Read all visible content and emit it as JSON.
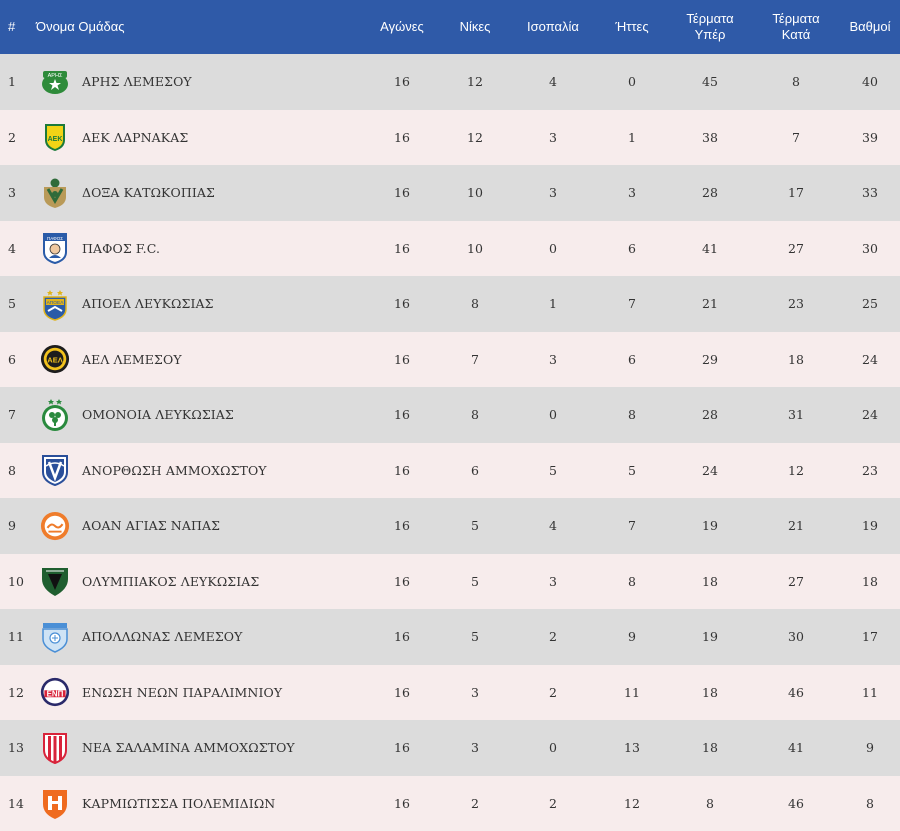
{
  "header": {
    "rank": "#",
    "team": "Όνομα Ομάδας",
    "played": "Αγώνες",
    "wins": "Νίκες",
    "draws": "Ισοπαλία",
    "losses": "Ήττες",
    "goals_for_1": "Τέρματα",
    "goals_for_2": "Υπέρ",
    "goals_against_1": "Τέρματα",
    "goals_against_2": "Κατά",
    "points": "Βαθμοί"
  },
  "rows": [
    {
      "rank": "1",
      "team": "ΑΡΗΣ ΛΕΜΕΣΟΥ",
      "played": "16",
      "wins": "12",
      "draws": "4",
      "losses": "0",
      "gf": "45",
      "ga": "8",
      "pts": "40",
      "logo": "aris-limassol-logo",
      "logo_text": "ΑΡΗΣ"
    },
    {
      "rank": "2",
      "team": "ΑΕΚ ΛΑΡΝΑΚΑΣ",
      "played": "16",
      "wins": "12",
      "draws": "3",
      "losses": "1",
      "gf": "38",
      "ga": "7",
      "pts": "39",
      "logo": "aek-larnaca-logo",
      "logo_text": "ΑΕΚ"
    },
    {
      "rank": "3",
      "team": "ΔΟΞΑ ΚΑΤΩΚΟΠΙΑΣ",
      "played": "16",
      "wins": "10",
      "draws": "3",
      "losses": "3",
      "gf": "28",
      "ga": "17",
      "pts": "33",
      "logo": "doxa-katokopias-logo",
      "logo_text": ""
    },
    {
      "rank": "4",
      "team": "ΠΑΦΟΣ F.C.",
      "played": "16",
      "wins": "10",
      "draws": "0",
      "losses": "6",
      "gf": "41",
      "ga": "27",
      "pts": "30",
      "logo": "pafos-fc-logo",
      "logo_text": "ΠΑΦΟΣ"
    },
    {
      "rank": "5",
      "team": "ΑΠΟΕΛ ΛΕΥΚΩΣΙΑΣ",
      "played": "16",
      "wins": "8",
      "draws": "1",
      "losses": "7",
      "gf": "21",
      "ga": "23",
      "pts": "25",
      "logo": "apoel-logo",
      "logo_text": "ΑΠΟΕΛ"
    },
    {
      "rank": "6",
      "team": "ΑΕΛ ΛΕΜΕΣΟΥ",
      "played": "16",
      "wins": "7",
      "draws": "3",
      "losses": "6",
      "gf": "29",
      "ga": "18",
      "pts": "24",
      "logo": "ael-limassol-logo",
      "logo_text": "ΑΕΛ"
    },
    {
      "rank": "7",
      "team": "ΟΜΟΝΟΙΑ ΛΕΥΚΩΣΙΑΣ",
      "played": "16",
      "wins": "8",
      "draws": "0",
      "losses": "8",
      "gf": "28",
      "ga": "31",
      "pts": "24",
      "logo": "omonoia-logo",
      "logo_text": ""
    },
    {
      "rank": "8",
      "team": "ΑΝΟΡΘΩΣΗ ΑΜΜΟΧΩΣΤΟΥ",
      "played": "16",
      "wins": "6",
      "draws": "5",
      "losses": "5",
      "gf": "24",
      "ga": "12",
      "pts": "23",
      "logo": "anorthosis-logo",
      "logo_text": ""
    },
    {
      "rank": "9",
      "team": "ΑΟΑΝ ΑΓΙΑΣ ΝΑΠΑΣ",
      "played": "16",
      "wins": "5",
      "draws": "4",
      "losses": "7",
      "gf": "19",
      "ga": "21",
      "pts": "19",
      "logo": "aoan-agia-napa-logo",
      "logo_text": ""
    },
    {
      "rank": "10",
      "team": "ΟΛΥΜΠΙΑΚΟΣ ΛΕΥΚΩΣΙΑΣ",
      "played": "16",
      "wins": "5",
      "draws": "3",
      "losses": "8",
      "gf": "18",
      "ga": "27",
      "pts": "18",
      "logo": "olympiakos-nicosia-logo",
      "logo_text": ""
    },
    {
      "rank": "11",
      "team": "ΑΠΟΛΛΩΝΑΣ ΛΕΜΕΣΟΥ",
      "played": "16",
      "wins": "5",
      "draws": "2",
      "losses": "9",
      "gf": "19",
      "ga": "30",
      "pts": "17",
      "logo": "apollon-limassol-logo",
      "logo_text": ""
    },
    {
      "rank": "12",
      "team": "ΕΝΩΣΗ ΝΕΩΝ ΠΑΡΑΛΙΜΝΙΟΥ",
      "played": "16",
      "wins": "3",
      "draws": "2",
      "losses": "11",
      "gf": "18",
      "ga": "46",
      "pts": "11",
      "logo": "enp-paralimni-logo",
      "logo_text": "ΕΝΠ"
    },
    {
      "rank": "13",
      "team": "ΝΕΑ ΣΑΛΑΜΙΝΑ ΑΜΜΟΧΩΣΤΟΥ",
      "played": "16",
      "wins": "3",
      "draws": "0",
      "losses": "13",
      "gf": "18",
      "ga": "41",
      "pts": "9",
      "logo": "nea-salamina-logo",
      "logo_text": ""
    },
    {
      "rank": "14",
      "team": "ΚΑΡΜΙΩΤΙΣΣΑ ΠΟΛΕΜΙΔΙΩΝ",
      "played": "16",
      "wins": "2",
      "draws": "2",
      "losses": "12",
      "gf": "8",
      "ga": "46",
      "pts": "8",
      "logo": "karmiotissa-logo",
      "logo_text": ""
    }
  ]
}
